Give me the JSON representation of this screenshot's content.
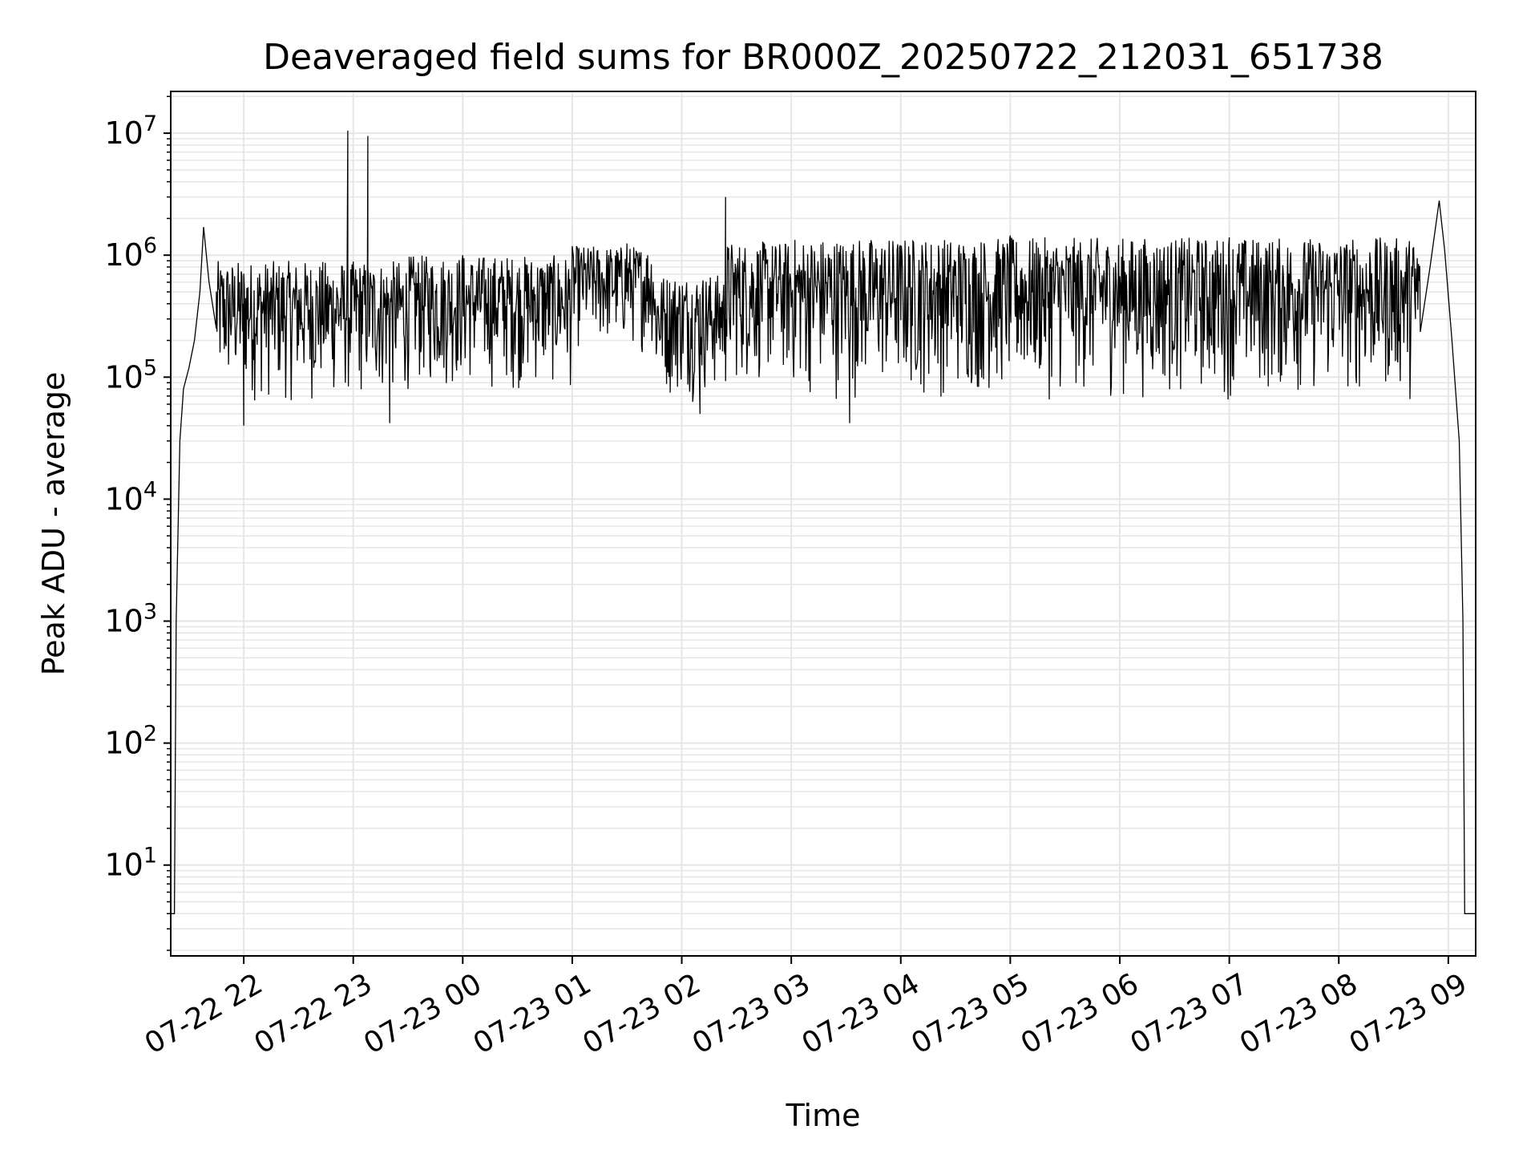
{
  "chart_data": {
    "type": "line",
    "title": "Deaveraged field sums for BR000Z_20250722_212031_651738",
    "xlabel": "Time",
    "ylabel": "Peak ADU - average",
    "yscale": "log",
    "ylim": [
      1.8,
      22000000
    ],
    "xlim": [
      "2025-07-22 21:20",
      "2025-07-23 09:15"
    ],
    "grid": "major and minor, light gray",
    "line_color": "#000000",
    "grid_color": "#e6e6e6",
    "x_ticks": [
      {
        "t": "2025-07-22 22:00",
        "label": "07-22 22"
      },
      {
        "t": "2025-07-22 23:00",
        "label": "07-22 23"
      },
      {
        "t": "2025-07-23 00:00",
        "label": "07-23 00"
      },
      {
        "t": "2025-07-23 01:00",
        "label": "07-23 01"
      },
      {
        "t": "2025-07-23 02:00",
        "label": "07-23 02"
      },
      {
        "t": "2025-07-23 03:00",
        "label": "07-23 03"
      },
      {
        "t": "2025-07-23 04:00",
        "label": "07-23 04"
      },
      {
        "t": "2025-07-23 05:00",
        "label": "07-23 05"
      },
      {
        "t": "2025-07-23 06:00",
        "label": "07-23 06"
      },
      {
        "t": "2025-07-23 07:00",
        "label": "07-23 07"
      },
      {
        "t": "2025-07-23 08:00",
        "label": "07-23 08"
      },
      {
        "t": "2025-07-23 09:00",
        "label": "07-23 09"
      }
    ],
    "y_ticks": [
      {
        "value": 10,
        "base": "10",
        "exp": "1"
      },
      {
        "value": 100,
        "base": "10",
        "exp": "2"
      },
      {
        "value": 1000,
        "base": "10",
        "exp": "3"
      },
      {
        "value": 10000,
        "base": "10",
        "exp": "4"
      },
      {
        "value": 100000,
        "base": "10",
        "exp": "5"
      },
      {
        "value": 1000000,
        "base": "10",
        "exp": "6"
      },
      {
        "value": 10000000,
        "base": "10",
        "exp": "7"
      }
    ],
    "series": [
      {
        "points": [
          {
            "t": "2025-07-22 21:20",
            "y": 4
          },
          {
            "t": "2025-07-22 21:22",
            "y": 4
          },
          {
            "t": "2025-07-22 21:23",
            "y": 1000
          },
          {
            "t": "2025-07-22 21:25",
            "y": 30000
          },
          {
            "t": "2025-07-22 21:27",
            "y": 80000
          },
          {
            "t": "2025-07-22 21:30",
            "y": 120000
          },
          {
            "t": "2025-07-22 21:33",
            "y": 200000
          },
          {
            "t": "2025-07-22 21:36",
            "y": 500000
          },
          {
            "t": "2025-07-22 21:38",
            "y": 1700000
          },
          {
            "t": "2025-07-22 21:41",
            "y": 600000
          },
          {
            "t": "2025-07-22 21:45",
            "y": 250000
          },
          {
            "t": "2025-07-22 22:00",
            "y": 40000
          },
          {
            "t": "2025-07-22 22:57",
            "y": 10500000
          },
          {
            "t": "2025-07-22 23:08",
            "y": 9500000
          },
          {
            "t": "2025-07-22 23:20",
            "y": 42000
          },
          {
            "t": "2025-07-23 00:00",
            "y": 1000000
          },
          {
            "t": "2025-07-23 01:30",
            "y": 1250000
          },
          {
            "t": "2025-07-23 02:10",
            "y": 50000
          },
          {
            "t": "2025-07-23 02:24",
            "y": 3000000
          },
          {
            "t": "2025-07-23 03:32",
            "y": 42000
          },
          {
            "t": "2025-07-23 05:00",
            "y": 1450000
          },
          {
            "t": "2025-07-23 07:00",
            "y": 1400000
          },
          {
            "t": "2025-07-23 08:42",
            "y": 300000
          },
          {
            "t": "2025-07-23 08:50",
            "y": 800000
          },
          {
            "t": "2025-07-23 08:55",
            "y": 2800000
          },
          {
            "t": "2025-07-23 08:58",
            "y": 1100000
          },
          {
            "t": "2025-07-23 09:02",
            "y": 200000
          },
          {
            "t": "2025-07-23 09:06",
            "y": 30000
          },
          {
            "t": "2025-07-23 09:08",
            "y": 1000
          },
          {
            "t": "2025-07-23 09:09",
            "y": 4
          },
          {
            "t": "2025-07-23 09:15",
            "y": 4
          }
        ],
        "noise_bands": [
          {
            "start": "2025-07-22 21:45",
            "end": "2025-07-22 23:30",
            "low": 55000,
            "high": 900000
          },
          {
            "start": "2025-07-22 23:30",
            "end": "2025-07-23 01:00",
            "low": 70000,
            "high": 1000000
          },
          {
            "start": "2025-07-23 01:00",
            "end": "2025-07-23 01:45",
            "low": 150000,
            "high": 1200000
          },
          {
            "start": "2025-07-23 01:45",
            "end": "2025-07-23 02:25",
            "low": 60000,
            "high": 700000
          },
          {
            "start": "2025-07-23 02:25",
            "end": "2025-07-23 03:00",
            "low": 75000,
            "high": 1300000
          },
          {
            "start": "2025-07-23 03:00",
            "end": "2025-07-23 08:45",
            "low": 60000,
            "high": 1400000
          }
        ]
      }
    ]
  }
}
